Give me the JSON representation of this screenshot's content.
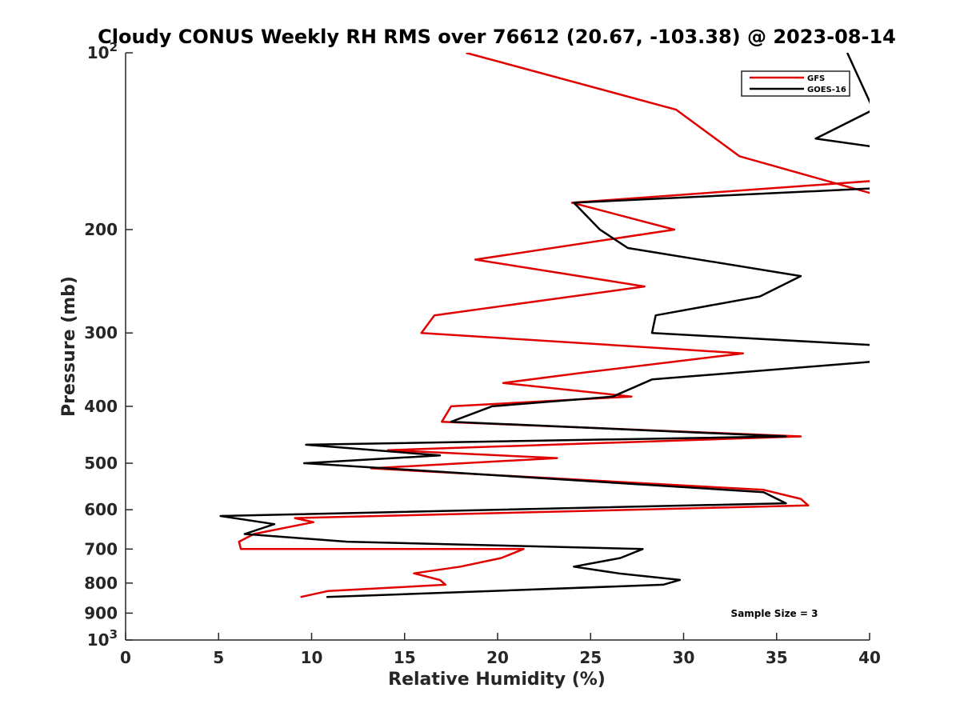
{
  "chart_data": {
    "type": "line",
    "title": "Cloudy CONUS Weekly RH RMS over 76612 (20.67, -103.38) @ 2023-08-14",
    "xlabel": "Relative Humidity (%)",
    "ylabel": "Pressure (mb)",
    "xlim": [
      0,
      40
    ],
    "ylim": [
      100,
      1000
    ],
    "yscale": "log",
    "yreversed": true,
    "xticks": [
      "0",
      "5",
      "10",
      "15",
      "20",
      "25",
      "30",
      "35",
      "40"
    ],
    "xtick_values": [
      0,
      5,
      10,
      15,
      20,
      25,
      30,
      35,
      40
    ],
    "yticks": [
      {
        "value": 100,
        "base": "10",
        "exp": "2"
      },
      {
        "value": 200,
        "label": "200"
      },
      {
        "value": 300,
        "label": "300"
      },
      {
        "value": 400,
        "label": "400"
      },
      {
        "value": 500,
        "label": "500"
      },
      {
        "value": 600,
        "label": "600"
      },
      {
        "value": 700,
        "label": "700"
      },
      {
        "value": 800,
        "label": "800"
      },
      {
        "value": 900,
        "label": "900"
      },
      {
        "value": 1000,
        "base": "10",
        "exp": "3"
      }
    ],
    "legend_position": "top-right",
    "annotation": "Sample Size = 3",
    "series": [
      {
        "name": "GFS",
        "color": "#e00000",
        "points": [
          [
            18.3,
            100
          ],
          [
            29.6,
            125
          ],
          [
            33.0,
            150
          ],
          [
            40.5,
            175
          ],
          [
            40.5,
            165
          ],
          [
            24.0,
            180
          ],
          [
            29.5,
            200
          ],
          [
            18.8,
            225
          ],
          [
            27.9,
            250
          ],
          [
            16.6,
            280
          ],
          [
            15.9,
            300
          ],
          [
            33.2,
            325
          ],
          [
            24.8,
            350
          ],
          [
            20.3,
            365
          ],
          [
            27.2,
            385
          ],
          [
            17.5,
            400
          ],
          [
            17.0,
            425
          ],
          [
            36.3,
            450
          ],
          [
            14.1,
            475
          ],
          [
            23.2,
            490
          ],
          [
            13.2,
            510
          ],
          [
            34.3,
            555
          ],
          [
            36.3,
            575
          ],
          [
            36.7,
            590
          ],
          [
            9.1,
            620
          ],
          [
            10.1,
            630
          ],
          [
            6.9,
            660
          ],
          [
            6.1,
            680
          ],
          [
            6.2,
            700
          ],
          [
            21.4,
            700
          ],
          [
            20.2,
            725
          ],
          [
            18.0,
            750
          ],
          [
            15.5,
            770
          ],
          [
            16.9,
            790
          ],
          [
            17.2,
            805
          ],
          [
            10.9,
            825
          ],
          [
            9.4,
            845
          ]
        ]
      },
      {
        "name": "GOES-16",
        "color": "#000000",
        "points": [
          [
            38.8,
            100
          ],
          [
            40.2,
            125
          ],
          [
            37.1,
            140
          ],
          [
            40.5,
            145
          ],
          [
            40.5,
            170
          ],
          [
            24.1,
            180
          ],
          [
            25.5,
            200
          ],
          [
            27.0,
            215
          ],
          [
            36.3,
            240
          ],
          [
            34.1,
            260
          ],
          [
            28.5,
            280
          ],
          [
            28.3,
            300
          ],
          [
            40.5,
            315
          ],
          [
            40.5,
            335
          ],
          [
            28.3,
            360
          ],
          [
            26.2,
            385
          ],
          [
            19.7,
            400
          ],
          [
            17.5,
            425
          ],
          [
            35.5,
            450
          ],
          [
            9.7,
            465
          ],
          [
            16.9,
            485
          ],
          [
            9.6,
            500
          ],
          [
            34.3,
            560
          ],
          [
            35.5,
            585
          ],
          [
            5.1,
            615
          ],
          [
            8.0,
            635
          ],
          [
            6.4,
            660
          ],
          [
            11.9,
            680
          ],
          [
            27.8,
            700
          ],
          [
            26.6,
            725
          ],
          [
            24.1,
            750
          ],
          [
            26.5,
            770
          ],
          [
            29.8,
            790
          ],
          [
            28.9,
            805
          ],
          [
            10.8,
            845
          ]
        ]
      }
    ]
  }
}
